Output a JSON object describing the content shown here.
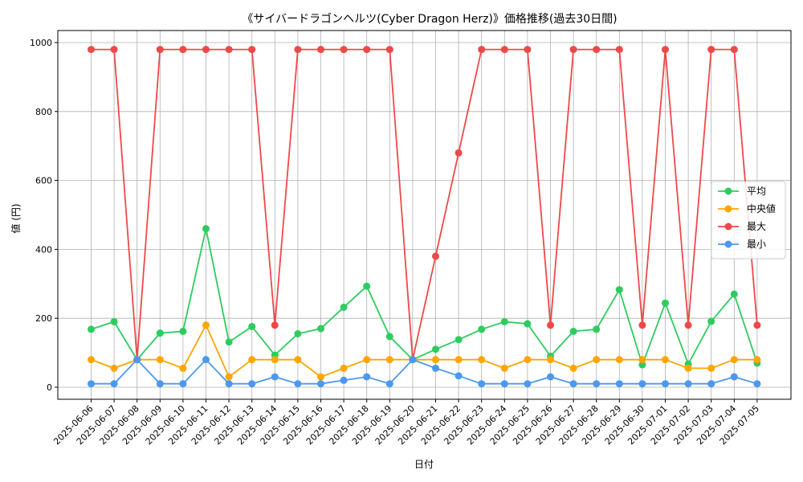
{
  "chart_data": {
    "type": "line",
    "title": "《サイバードラゴンヘルツ(Cyber Dragon Herz)》価格推移(過去30日間)",
    "xlabel": "日付",
    "ylabel": "値 (円)",
    "ylim": [
      -35,
      1035
    ],
    "yticks": [
      0,
      200,
      400,
      600,
      800,
      1000
    ],
    "grid": true,
    "legend_position": "center-right",
    "categories": [
      "2025-06-06",
      "2025-06-07",
      "2025-06-08",
      "2025-06-09",
      "2025-06-10",
      "2025-06-11",
      "2025-06-12",
      "2025-06-13",
      "2025-06-14",
      "2025-06-15",
      "2025-06-16",
      "2025-06-17",
      "2025-06-18",
      "2025-06-19",
      "2025-06-20",
      "2025-06-21",
      "2025-06-22",
      "2025-06-23",
      "2025-06-24",
      "2025-06-25",
      "2025-06-26",
      "2025-06-27",
      "2025-06-28",
      "2025-06-29",
      "2025-06-30",
      "2025-07-01",
      "2025-07-02",
      "2025-07-03",
      "2025-07-04",
      "2025-07-05"
    ],
    "series": [
      {
        "name": "平均",
        "color": "#2ecc5f",
        "values": [
          168,
          190,
          80,
          157,
          162,
          460,
          131,
          176,
          93,
          155,
          170,
          232,
          293,
          147,
          80,
          110,
          138,
          168,
          190,
          184,
          90,
          162,
          168,
          283,
          65,
          244,
          67,
          191,
          270,
          70
        ]
      },
      {
        "name": "中央値",
        "color": "#ffa500",
        "values": [
          80,
          55,
          80,
          80,
          55,
          180,
          30,
          80,
          80,
          80,
          30,
          55,
          80,
          80,
          80,
          80,
          80,
          80,
          55,
          80,
          80,
          55,
          80,
          80,
          80,
          80,
          55,
          55,
          80,
          80
        ]
      },
      {
        "name": "最大",
        "color": "#f04848",
        "values": [
          980,
          980,
          80,
          980,
          980,
          980,
          980,
          980,
          180,
          980,
          980,
          980,
          980,
          980,
          80,
          380,
          680,
          980,
          980,
          980,
          180,
          980,
          980,
          980,
          180,
          980,
          180,
          980,
          980,
          180
        ]
      },
      {
        "name": "最小",
        "color": "#4c98f0",
        "values": [
          10,
          10,
          80,
          10,
          10,
          80,
          10,
          10,
          30,
          10,
          10,
          20,
          30,
          10,
          80,
          55,
          33,
          10,
          10,
          10,
          30,
          10,
          10,
          10,
          10,
          10,
          10,
          10,
          30,
          10
        ]
      }
    ]
  }
}
